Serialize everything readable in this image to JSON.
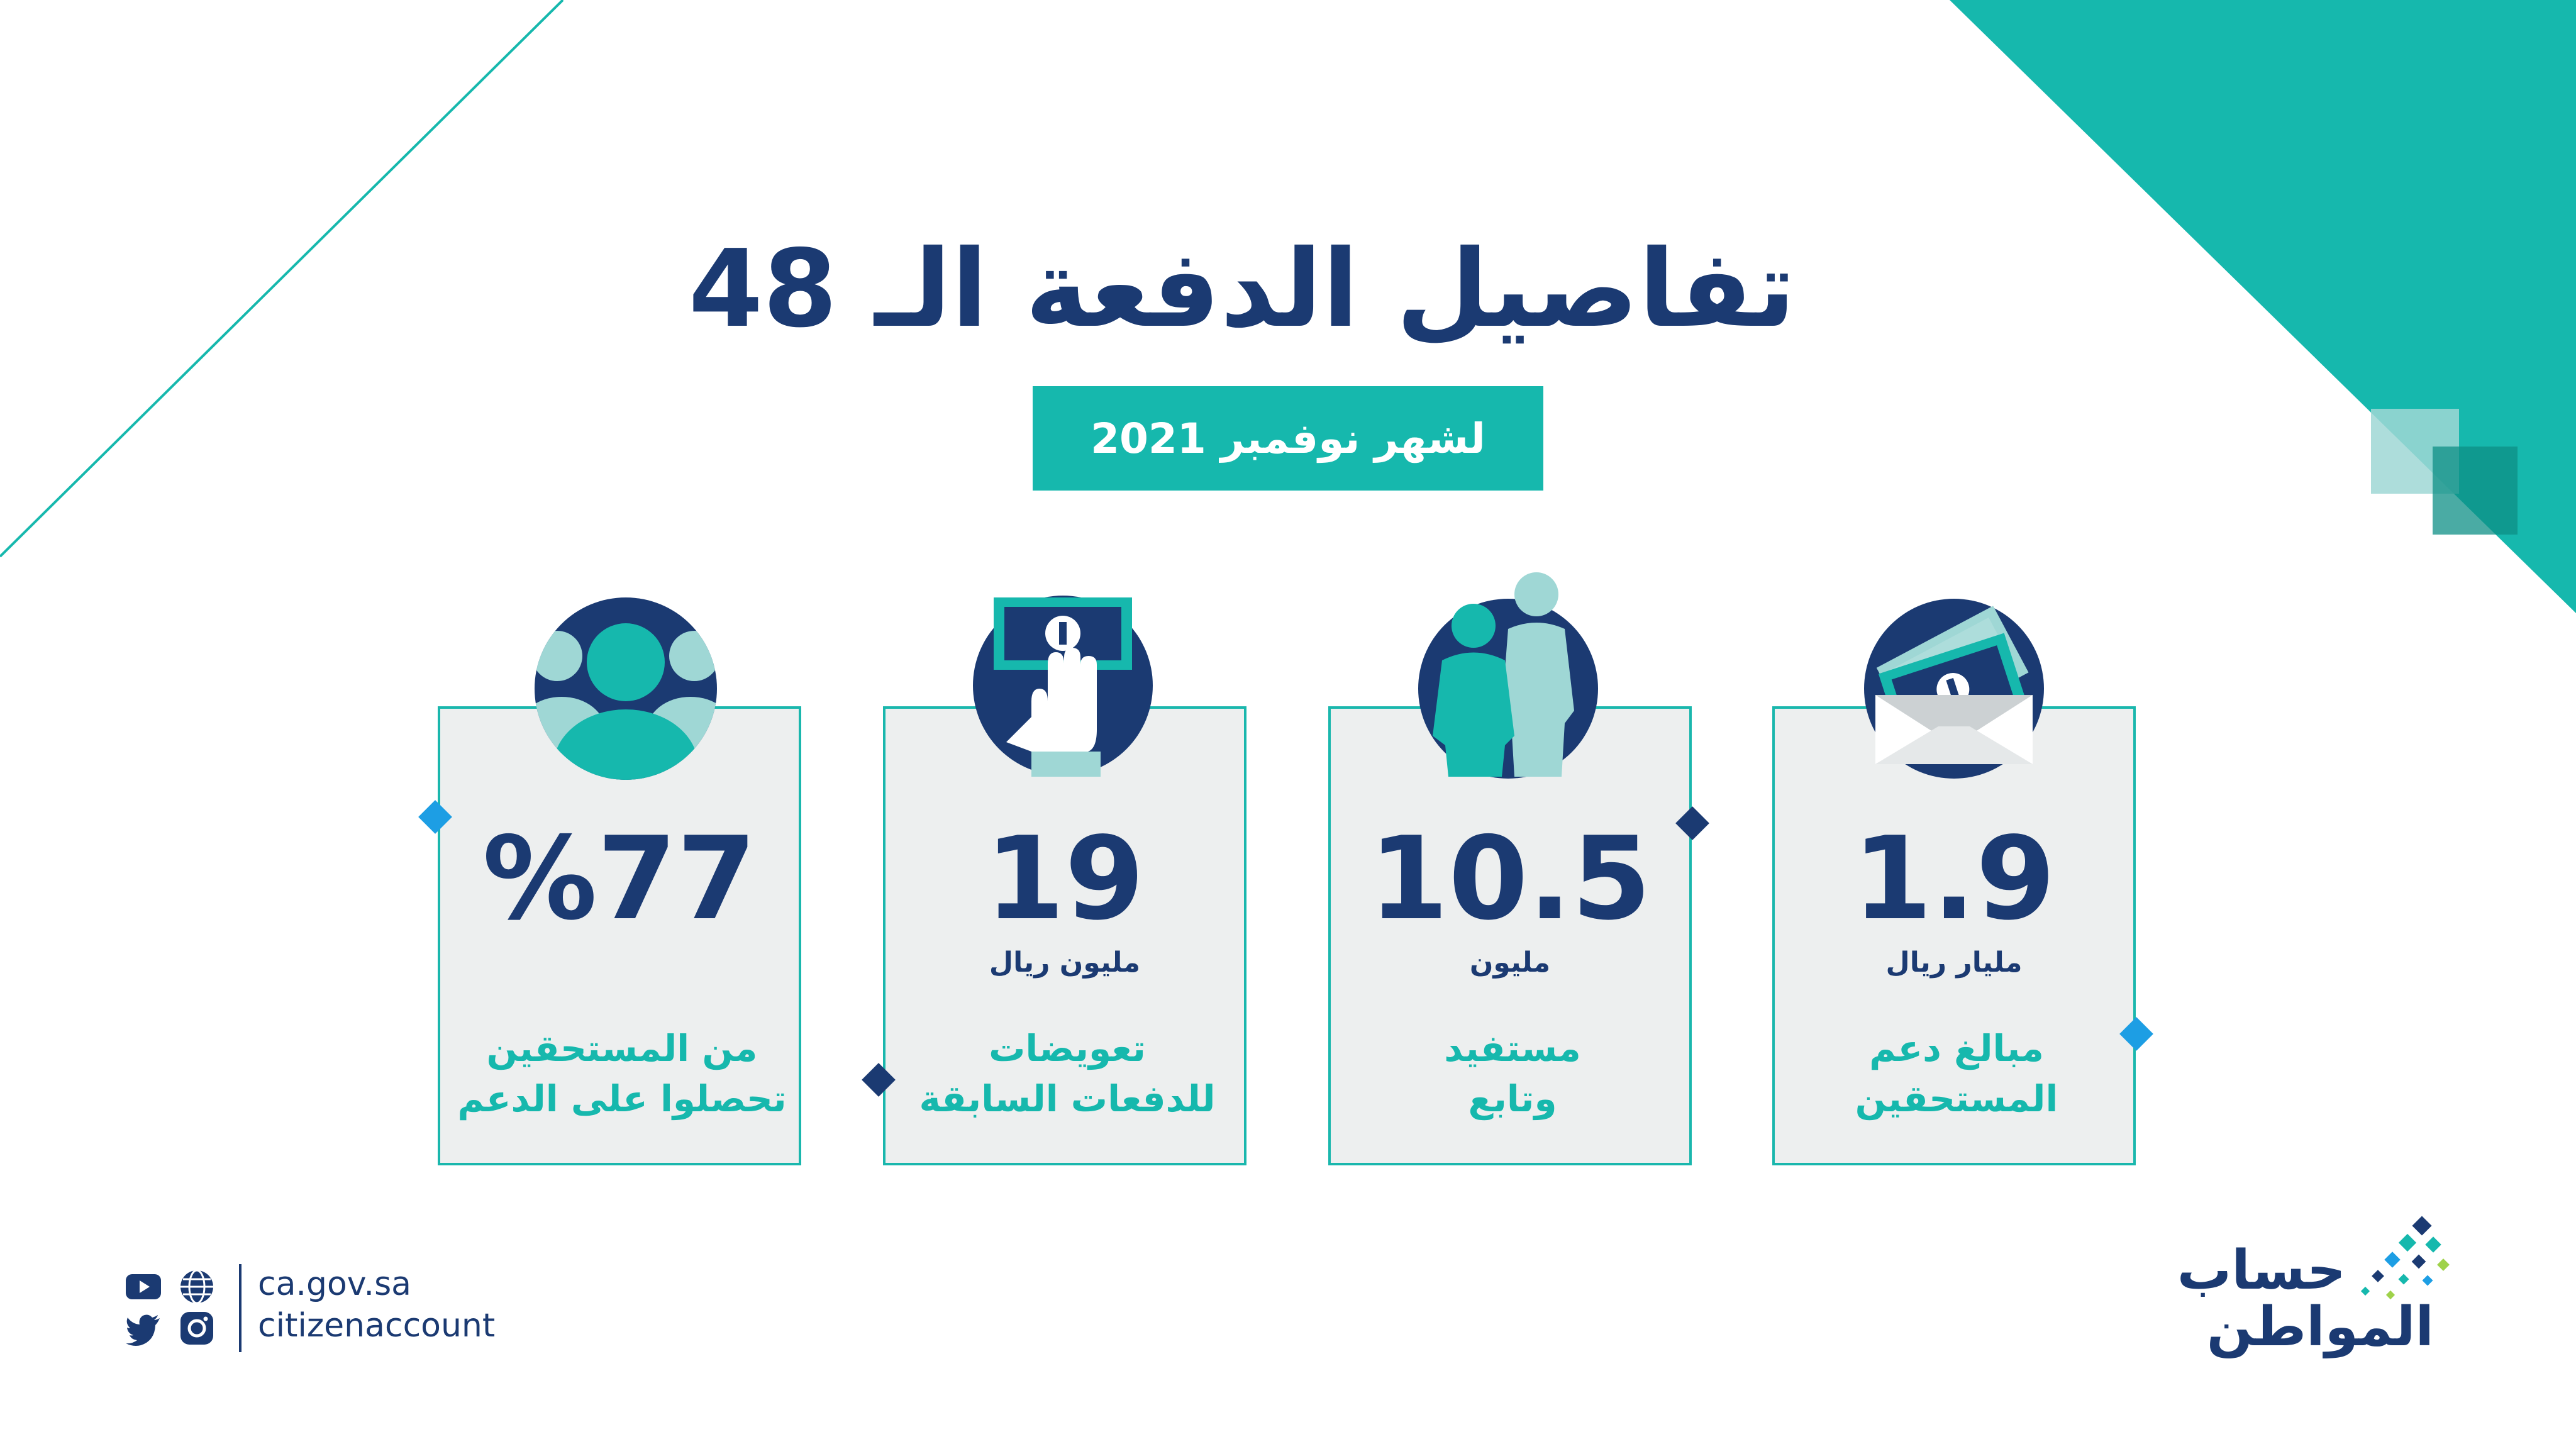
{
  "title": "تفاصيل الدفعة الـ 48",
  "subtitle": "لشهر نوفمبر 2021",
  "colors": {
    "navy": "#1b3a72",
    "teal": "#16b8ad",
    "light_teal": "#9fd7d5",
    "card_bg": "#edefef",
    "accent_blue": "#1d9ee4"
  },
  "cards": [
    {
      "value": "1.9",
      "unit": "مليار ريال",
      "desc": [
        "مبالغ دعم",
        "المستحقين"
      ],
      "icon": "money-envelope-icon"
    },
    {
      "value": "10.5",
      "unit": "مليون",
      "desc": [
        "مستفيد",
        "وتابع"
      ],
      "icon": "beneficiaries-icon"
    },
    {
      "value": "19",
      "unit": "مليون ريال",
      "desc": [
        "تعويضات",
        "للدفعات السابقة"
      ],
      "icon": "hand-money-icon"
    },
    {
      "value": "%77",
      "unit": "",
      "desc": [
        "من المستحقين",
        "تحصلوا على الدعم"
      ],
      "icon": "group-icon"
    }
  ],
  "footer": {
    "website": "ca.gov.sa",
    "handle": "citizenaccount",
    "social_icons": [
      "youtube-icon",
      "globe-icon",
      "twitter-icon",
      "instagram-icon"
    ]
  },
  "logo": {
    "line1": "حساب",
    "line2": "المواطن"
  }
}
